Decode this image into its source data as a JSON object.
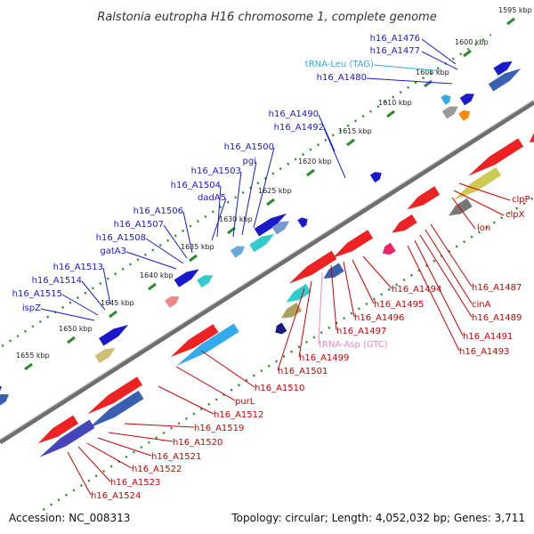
{
  "title": "Ralstonia eutropha H16 chromosome 1, complete genome",
  "accession": "Accession: NC_008313",
  "topology": "Topology: circular; Length: 4,052,032 bp; Genes: 3,711",
  "colors": {
    "fwd_label": "#1a1acc",
    "rev_label": "#cc0000",
    "trna_leu": "#33aadd",
    "trna_asp": "#ee88bb",
    "backbone": "#808080",
    "kbp_marks": "#2b8a2b"
  },
  "kbp_ticks": [
    "1595 kbp",
    "1600 kbp",
    "1605 kbp",
    "1610 kbp",
    "1615 kbp",
    "1620 kbp",
    "1625 kbp",
    "1630 kbp",
    "1635 kbp",
    "1640 kbp",
    "1645 kbp",
    "1650 kbp",
    "1655 kbp"
  ],
  "forward_genes": [
    "h16_A1476",
    "h16_A1477",
    "tRNA-Leu (TAG)",
    "h16_A1480",
    "h16_A1490",
    "h16_A1492",
    "h16_A1500",
    "pgi",
    "h16_A1503",
    "h16_A1504",
    "dadA5",
    "h16_A1506",
    "h16_A1507",
    "h16_A1508",
    "gatA3",
    "h16_A1513",
    "h16_A1514",
    "h16_A1515",
    "ispZ"
  ],
  "reverse_genes": [
    "clpP",
    "clpX",
    "lon",
    "h16_A1487",
    "cinA",
    "h16_A1489",
    "h16_A1491",
    "h16_A1493",
    "h16_A1494",
    "h16_A1495",
    "h16_A1496",
    "h16_A1497",
    "tRNA-Asp (GTC)",
    "h16_A1499",
    "h16_A1501",
    "h16_A1510",
    "purL",
    "h16_A1512",
    "h16_A1519",
    "h16_A1520",
    "h16_A1521",
    "h16_A1522",
    "h16_A1523",
    "h16_A1524"
  ]
}
